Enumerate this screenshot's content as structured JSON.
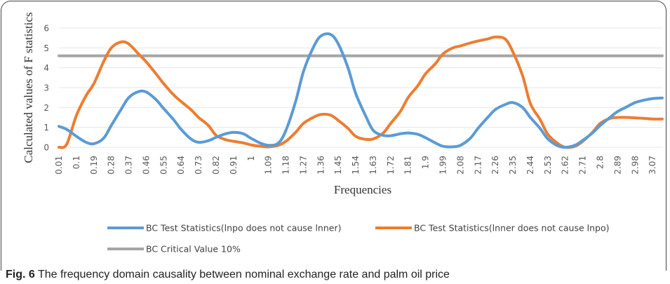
{
  "chart_data": {
    "type": "line",
    "xlabel": "Frequencies",
    "ylabel": "Calculated values of F statistics",
    "ylim": [
      0,
      6
    ],
    "y_ticks": [
      0,
      1,
      2,
      3,
      4,
      5,
      6
    ],
    "grid": "horizontal",
    "legend_position": "bottom",
    "x_tick_labels": [
      "0.01",
      "0.1",
      "0.19",
      "0.28",
      "0.37",
      "0.46",
      "0.55",
      "0.64",
      "0.73",
      "0.82",
      "0.91",
      "1",
      "1.09",
      "1.18",
      "1.27",
      "1.36",
      "1.45",
      "1.54",
      "1.63",
      "1.72",
      "1.81",
      "1.9",
      "1.99",
      "2.08",
      "2.17",
      "2.26",
      "2.35",
      "2.44",
      "2.53",
      "2.62",
      "2.71",
      "2.8",
      "2.89",
      "2.98",
      "3.07"
    ],
    "x": [
      0.01,
      0.05,
      0.1,
      0.15,
      0.19,
      0.24,
      0.28,
      0.33,
      0.37,
      0.42,
      0.46,
      0.51,
      0.55,
      0.6,
      0.64,
      0.69,
      0.73,
      0.78,
      0.82,
      0.87,
      0.91,
      0.96,
      1,
      1.05,
      1.09,
      1.14,
      1.18,
      1.23,
      1.27,
      1.32,
      1.36,
      1.41,
      1.45,
      1.5,
      1.54,
      1.59,
      1.63,
      1.68,
      1.72,
      1.77,
      1.81,
      1.86,
      1.9,
      1.95,
      1.99,
      2.04,
      2.08,
      2.13,
      2.17,
      2.22,
      2.26,
      2.31,
      2.35,
      2.4,
      2.44,
      2.49,
      2.53,
      2.58,
      2.62,
      2.67,
      2.71,
      2.76,
      2.8,
      2.85,
      2.89,
      2.94,
      2.98,
      3.03,
      3.07,
      3.12
    ],
    "series": [
      {
        "name": "BC Test Statistics(lnpo does not cause lnner)",
        "color": "#5B9BD5",
        "values": [
          1.05,
          0.9,
          0.55,
          0.25,
          0.18,
          0.45,
          1.1,
          1.9,
          2.5,
          2.8,
          2.78,
          2.4,
          1.95,
          1.4,
          0.9,
          0.42,
          0.25,
          0.33,
          0.5,
          0.68,
          0.75,
          0.68,
          0.45,
          0.2,
          0.1,
          0.2,
          0.85,
          2.3,
          3.8,
          5.0,
          5.6,
          5.68,
          5.2,
          4.0,
          2.7,
          1.6,
          0.85,
          0.6,
          0.58,
          0.68,
          0.72,
          0.65,
          0.48,
          0.22,
          0.05,
          0.02,
          0.1,
          0.45,
          0.95,
          1.5,
          1.9,
          2.15,
          2.25,
          2.0,
          1.5,
          0.95,
          0.42,
          0.08,
          0.0,
          0.1,
          0.35,
          0.72,
          1.1,
          1.5,
          1.8,
          2.05,
          2.25,
          2.38,
          2.45,
          2.48
        ]
      },
      {
        "name": "BC Test Statistics(lnner does not cause lnpo)",
        "color": "#ED7D31",
        "values": [
          0.0,
          0.15,
          1.6,
          2.6,
          3.2,
          4.3,
          5.0,
          5.3,
          5.2,
          4.7,
          4.3,
          3.7,
          3.2,
          2.65,
          2.3,
          1.9,
          1.5,
          1.1,
          0.6,
          0.38,
          0.3,
          0.22,
          0.12,
          0.05,
          0.02,
          0.1,
          0.3,
          0.75,
          1.2,
          1.5,
          1.65,
          1.62,
          1.35,
          0.95,
          0.55,
          0.4,
          0.42,
          0.7,
          1.2,
          1.8,
          2.5,
          3.1,
          3.7,
          4.2,
          4.7,
          5.0,
          5.1,
          5.25,
          5.35,
          5.45,
          5.55,
          5.45,
          4.8,
          3.6,
          2.2,
          1.4,
          0.65,
          0.2,
          0.0,
          0.05,
          0.3,
          0.75,
          1.2,
          1.45,
          1.5,
          1.5,
          1.48,
          1.45,
          1.42,
          1.42
        ]
      },
      {
        "name": "BC Critical Value 10%",
        "color": "#A5A5A5",
        "values": [
          4.6,
          4.6,
          4.6,
          4.6,
          4.6,
          4.6,
          4.6,
          4.6,
          4.6,
          4.6,
          4.6,
          4.6,
          4.6,
          4.6,
          4.6,
          4.6,
          4.6,
          4.6,
          4.6,
          4.6,
          4.6,
          4.6,
          4.6,
          4.6,
          4.6,
          4.6,
          4.6,
          4.6,
          4.6,
          4.6,
          4.6,
          4.6,
          4.6,
          4.6,
          4.6,
          4.6,
          4.6,
          4.6,
          4.6,
          4.6,
          4.6,
          4.6,
          4.6,
          4.6,
          4.6,
          4.6,
          4.6,
          4.6,
          4.6,
          4.6,
          4.6,
          4.6,
          4.6,
          4.6,
          4.6,
          4.6,
          4.6,
          4.6,
          4.6,
          4.6,
          4.6,
          4.6,
          4.6,
          4.6,
          4.6,
          4.6,
          4.6,
          4.6,
          4.6,
          4.6
        ]
      }
    ]
  },
  "caption": {
    "label": "Fig. 6",
    "text": " The frequency domain causality between nominal exchange rate and palm oil price"
  }
}
